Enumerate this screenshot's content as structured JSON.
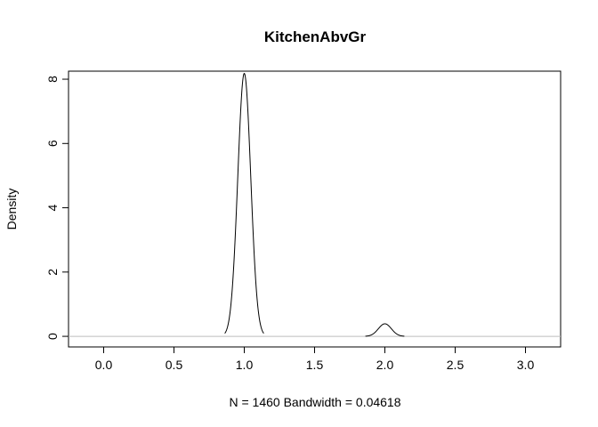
{
  "chart_data": {
    "type": "line",
    "title": "KitchenAbvGr",
    "xlabel": "N = 1460   Bandwidth = 0.04618",
    "ylabel": "Density",
    "xlim": [
      -0.25,
      3.25
    ],
    "ylim": [
      -0.33,
      8.25
    ],
    "xticks": [
      0.0,
      0.5,
      1.0,
      1.5,
      2.0,
      2.5,
      3.0
    ],
    "xtick_labels": [
      "0.0",
      "0.5",
      "1.0",
      "1.5",
      "2.0",
      "2.5",
      "3.0"
    ],
    "yticks": [
      0,
      2,
      4,
      6,
      8
    ],
    "ytick_labels": [
      "0",
      "2",
      "4",
      "6",
      "8"
    ],
    "zero_line": true,
    "zero_line_color": "#bebebe",
    "line_color": "#000000",
    "series": [
      {
        "peaks": [
          {
            "center": 1.0,
            "height": 8.18,
            "sd": 0.04618
          },
          {
            "center": 2.0,
            "height": 0.39,
            "sd": 0.04618
          }
        ]
      }
    ]
  }
}
